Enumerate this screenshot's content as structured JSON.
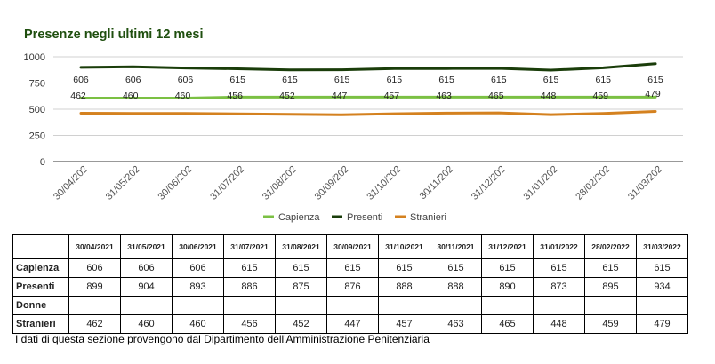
{
  "chart_data": {
    "type": "line",
    "title": "Presenze negli ultimi 12 mesi",
    "x_tick_labels": [
      "30/04/202",
      "31/05/202",
      "30/06/202",
      "31/07/202",
      "31/08/202",
      "30/09/202",
      "31/10/202",
      "30/11/202",
      "31/12/202",
      "31/01/202",
      "28/02/202",
      "31/03/202"
    ],
    "ylim": [
      0,
      1000
    ],
    "y_ticks": [
      "0",
      "250",
      "500",
      "750",
      "1000"
    ],
    "grid": true,
    "legend_position": "bottom",
    "series": [
      {
        "name": "Capienza",
        "color": "#7bc043",
        "values": [
          606,
          606,
          606,
          615,
          615,
          615,
          615,
          615,
          615,
          615,
          615,
          615
        ],
        "labels": [
          "606",
          "606",
          "606",
          "615",
          "615",
          "615",
          "615",
          "615",
          "615",
          "615",
          "615",
          "615"
        ]
      },
      {
        "name": "Presenti",
        "color": "#1a3d0a",
        "values": [
          899,
          904,
          893,
          886,
          875,
          876,
          888,
          888,
          890,
          873,
          895,
          934
        ]
      },
      {
        "name": "Stranieri",
        "color": "#d4811f",
        "values": [
          462,
          460,
          460,
          456,
          452,
          447,
          457,
          463,
          465,
          448,
          459,
          479
        ],
        "labels": [
          "462",
          "460",
          "460",
          "456",
          "452",
          "447",
          "457",
          "463",
          "465",
          "448",
          "459",
          "479"
        ]
      }
    ]
  },
  "table": {
    "headers": [
      "30/04/2021",
      "31/05/2021",
      "30/06/2021",
      "31/07/2021",
      "31/08/2021",
      "30/09/2021",
      "31/10/2021",
      "30/11/2021",
      "31/12/2021",
      "31/01/2022",
      "28/02/2022",
      "31/03/2022"
    ],
    "rows": [
      {
        "label": "Capienza",
        "values": [
          "606",
          "606",
          "606",
          "615",
          "615",
          "615",
          "615",
          "615",
          "615",
          "615",
          "615",
          "615"
        ]
      },
      {
        "label": "Presenti",
        "values": [
          "899",
          "904",
          "893",
          "886",
          "875",
          "876",
          "888",
          "888",
          "890",
          "873",
          "895",
          "934"
        ]
      },
      {
        "label": "Donne",
        "values": [
          "",
          "",
          "",
          "",
          "",
          "",
          "",
          "",
          "",
          "",
          "",
          ""
        ]
      },
      {
        "label": "Stranieri",
        "values": [
          "462",
          "460",
          "460",
          "456",
          "452",
          "447",
          "457",
          "463",
          "465",
          "448",
          "459",
          "479"
        ]
      }
    ]
  },
  "footnote": "I dati di questa sezione provengono dal Dipartimento dell'Amministrazione Penitenziaria"
}
